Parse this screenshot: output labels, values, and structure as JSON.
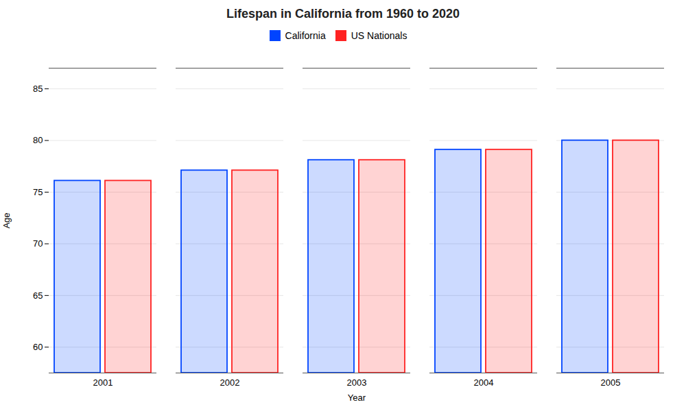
{
  "chart_data": {
    "type": "bar",
    "title": "Lifespan in California from 1960 to 2020",
    "xlabel": "Year",
    "ylabel": "Age",
    "categories": [
      "2001",
      "2002",
      "2003",
      "2004",
      "2005"
    ],
    "series": [
      {
        "name": "California",
        "color": "#0044ff",
        "values": [
          76.1,
          77.1,
          78.1,
          79.1,
          80.0
        ]
      },
      {
        "name": "US Nationals",
        "color": "#ff2222",
        "values": [
          76.1,
          77.1,
          78.1,
          79.1,
          80.0
        ]
      }
    ],
    "ylim": [
      57.5,
      87
    ],
    "yticks": [
      60,
      65,
      70,
      75,
      80,
      85
    ],
    "grid": true,
    "legend": "top"
  }
}
